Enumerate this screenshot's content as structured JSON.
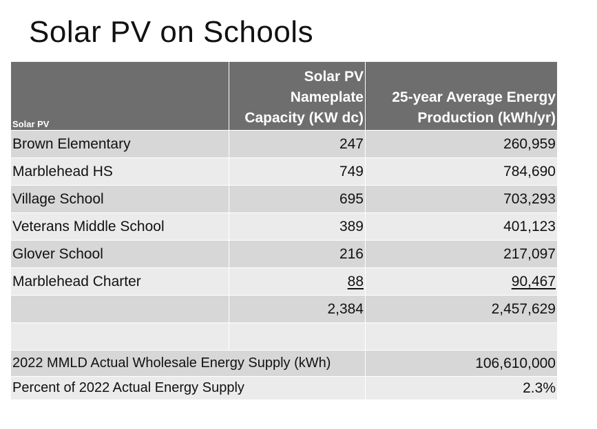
{
  "title": "Solar PV on Schools",
  "table": {
    "header": {
      "col1": "Solar PV",
      "col2_lines": [
        "Solar PV",
        "Nameplate",
        "Capacity (KW dc)"
      ],
      "col3_lines": [
        "25-year Average Energy",
        "Production (kWh/yr)"
      ]
    },
    "rows": [
      {
        "name": "Brown Elementary",
        "capacity": "247",
        "production": "260,959"
      },
      {
        "name": "Marblehead HS",
        "capacity": "749",
        "production": "784,690"
      },
      {
        "name": "Village School",
        "capacity": "695",
        "production": "703,293"
      },
      {
        "name": "Veterans Middle School",
        "capacity": "389",
        "production": "401,123"
      },
      {
        "name": "Glover School",
        "capacity": "216",
        "production": "217,097"
      },
      {
        "name": "Marblehead Charter",
        "capacity": "88",
        "production": "90,467"
      }
    ],
    "totals": {
      "capacity": "2,384",
      "production": "2,457,629"
    },
    "supply": {
      "label": "2022 MMLD Actual Wholesale Energy Supply (kWh)",
      "value": "106,610,000"
    },
    "percent": {
      "label": "Percent of 2022 Actual Energy Supply",
      "value": "2.3%"
    }
  }
}
